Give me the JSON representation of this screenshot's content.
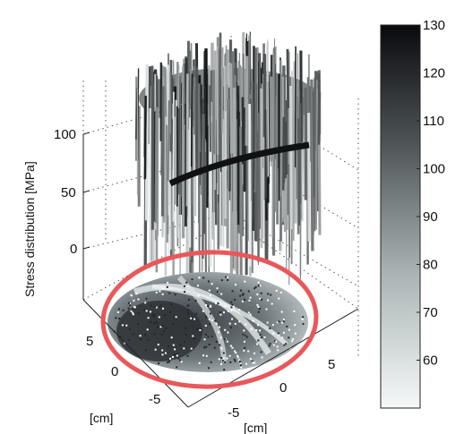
{
  "chart_data": {
    "type": "surface3d",
    "zlabel": "Stress distribution [MPa]",
    "xlabel": "[cm]",
    "ylabel": "[cm]",
    "z_ticks": [
      "0",
      "50",
      "100"
    ],
    "z_tick_values": [
      0,
      50,
      100
    ],
    "x_ticks": [
      "5",
      "0",
      "-5"
    ],
    "y_ticks": [
      "-5",
      "0",
      "5"
    ],
    "colorbar": {
      "ticks": [
        60,
        70,
        80,
        90,
        100,
        110,
        120,
        130
      ],
      "range": [
        50,
        130
      ],
      "colormap": "gray-reversed"
    },
    "annotation": {
      "shape": "ellipse",
      "color": "#e8585a",
      "encloses": "2D stress map projection on the base plane"
    },
    "grid": true,
    "colors": {
      "low": "#f4f7f7",
      "mid": "#8a9696",
      "high": "#0b0b0f"
    }
  }
}
